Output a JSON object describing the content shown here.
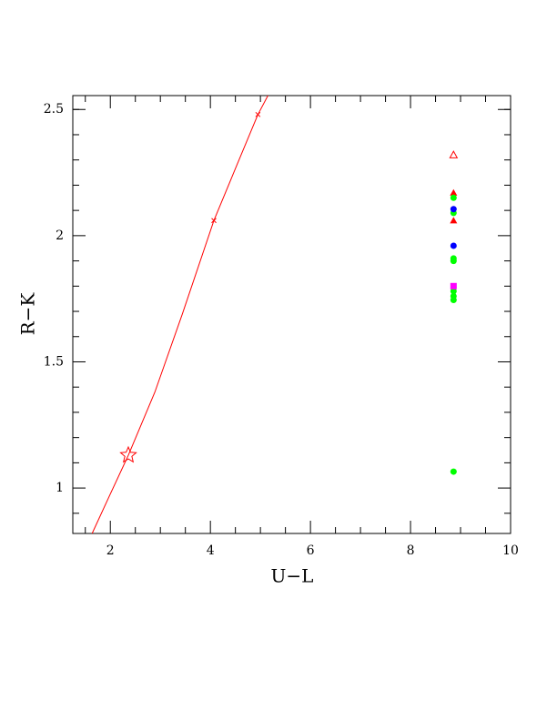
{
  "chart_data": {
    "type": "scatter",
    "x_label": "U−L",
    "y_label": "R−K",
    "xlim": [
      1.25,
      10
    ],
    "ylim": [
      0.82,
      2.555
    ],
    "xticks": [
      2,
      4,
      6,
      8,
      10
    ],
    "yticks": [
      1,
      1.5,
      2,
      2.5
    ],
    "xminor_ticks": [
      1.5,
      2.5,
      3,
      3.5,
      4.5,
      5,
      5.5,
      6.5,
      7,
      7.5,
      8.5,
      9,
      9.5
    ],
    "yminor_ticks": [
      0.9,
      1.1,
      1.2,
      1.3,
      1.4,
      1.6,
      1.7,
      1.8,
      1.9,
      2.1,
      2.2,
      2.3,
      2.4,
      2.5
    ],
    "series": [
      {
        "marker": "line",
        "color": "#ff0000",
        "x": [
          1.636,
          1.98,
          2.36,
          2.89,
          3.44,
          4.07,
          4.53,
          4.95,
          5.15
        ],
        "values": [
          0.82,
          0.968,
          1.13,
          1.38,
          1.69,
          2.06,
          2.28,
          2.48,
          2.555
        ]
      },
      {
        "marker": "cross",
        "color": "#ff0000",
        "x": [
          4.07,
          4.95
        ],
        "values": [
          2.06,
          2.48
        ]
      },
      {
        "marker": "star",
        "color": "#ff0000",
        "x": [
          2.36
        ],
        "values": [
          1.13
        ]
      },
      {
        "marker": "open-triangle",
        "color": "#ff0000",
        "x": [
          8.86
        ],
        "values": [
          2.32
        ]
      },
      {
        "marker": "triangle",
        "color": "#ff0000",
        "x": [
          8.86,
          8.86
        ],
        "values": [
          2.17,
          2.06
        ]
      },
      {
        "marker": "circle",
        "color": "#00ff00",
        "x": [
          8.86,
          8.86,
          8.86,
          8.86,
          8.86,
          8.86,
          8.86,
          8.86
        ],
        "values": [
          2.15,
          2.09,
          1.91,
          1.9,
          1.78,
          1.76,
          1.745,
          1.065
        ]
      },
      {
        "marker": "circle",
        "color": "#0000ff",
        "x": [
          8.86,
          8.86
        ],
        "values": [
          2.105,
          1.96
        ]
      },
      {
        "marker": "square",
        "color": "#ff00ff",
        "x": [
          8.86
        ],
        "values": [
          1.8
        ]
      }
    ]
  }
}
